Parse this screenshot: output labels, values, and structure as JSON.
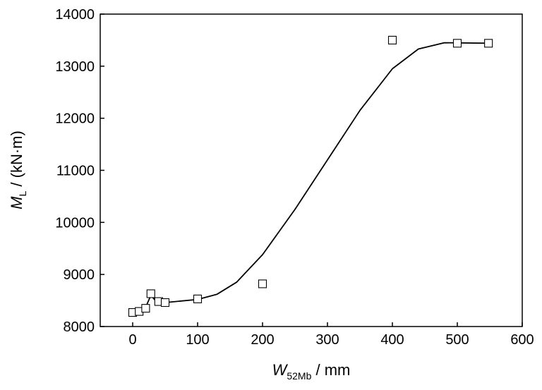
{
  "chart_data": {
    "type": "scatter",
    "xlabel": {
      "symbol": "W",
      "subscript": "52Mb",
      "unit": " / mm"
    },
    "ylabel": {
      "symbol": "M",
      "subscript": "L",
      "unit": " / (kN·m)"
    },
    "xlim": [
      -50,
      600
    ],
    "ylim": [
      8000,
      14000
    ],
    "xticks": [
      0,
      100,
      200,
      300,
      400,
      500,
      600
    ],
    "yticks": [
      8000,
      9000,
      10000,
      11000,
      12000,
      13000,
      14000
    ],
    "grid": false,
    "marker": "open-square",
    "points": [
      {
        "x": 0,
        "y": 8270
      },
      {
        "x": 10,
        "y": 8290
      },
      {
        "x": 20,
        "y": 8350
      },
      {
        "x": 28,
        "y": 8630
      },
      {
        "x": 40,
        "y": 8480
      },
      {
        "x": 50,
        "y": 8460
      },
      {
        "x": 100,
        "y": 8530
      },
      {
        "x": 200,
        "y": 8820
      },
      {
        "x": 400,
        "y": 13500
      },
      {
        "x": 500,
        "y": 13440
      },
      {
        "x": 548,
        "y": 13440
      }
    ],
    "fit_curve": [
      {
        "x": 0,
        "y": 8270
      },
      {
        "x": 10,
        "y": 8300
      },
      {
        "x": 20,
        "y": 8370
      },
      {
        "x": 28,
        "y": 8600
      },
      {
        "x": 35,
        "y": 8500
      },
      {
        "x": 50,
        "y": 8460
      },
      {
        "x": 100,
        "y": 8520
      },
      {
        "x": 130,
        "y": 8620
      },
      {
        "x": 160,
        "y": 8850
      },
      {
        "x": 200,
        "y": 9380
      },
      {
        "x": 250,
        "y": 10250
      },
      {
        "x": 300,
        "y": 11200
      },
      {
        "x": 350,
        "y": 12150
      },
      {
        "x": 400,
        "y": 12950
      },
      {
        "x": 440,
        "y": 13330
      },
      {
        "x": 480,
        "y": 13450
      },
      {
        "x": 548,
        "y": 13440
      }
    ]
  }
}
